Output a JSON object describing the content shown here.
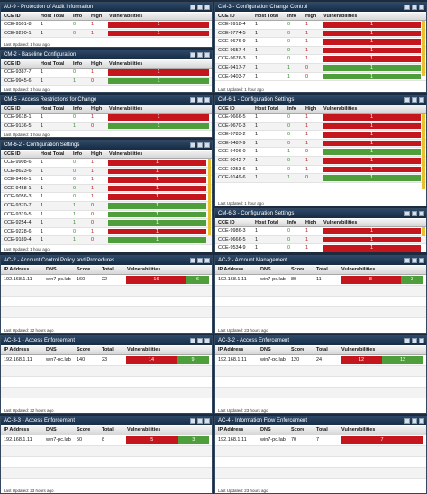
{
  "colors": [
    "#c4161c",
    "#4f9e3c"
  ],
  "panels": [
    {
      "title": "AU-9 - Protection of Audit Information",
      "columns": [
        "CCE ID",
        "Host Total",
        "Info",
        "High",
        "Vulnerabilities"
      ],
      "rows": [
        {
          "cells": [
            "CCE-9501-8",
            1,
            0,
            1
          ],
          "bar": [
            1,
            0
          ]
        },
        {
          "cells": [
            "CCE-9290-1",
            1,
            0,
            1
          ],
          "bar": [
            1,
            0
          ]
        }
      ],
      "footer": "Last Updated: 1 hour ago"
    },
    {
      "title": "CM-2 - Baseline Configuration",
      "columns": [
        "CCE ID",
        "Host Total",
        "Info",
        "High",
        "Vulnerabilities"
      ],
      "rows": [
        {
          "cells": [
            "CCE-9387-7",
            1,
            0,
            1
          ],
          "bar": [
            1,
            0
          ]
        },
        {
          "cells": [
            "CCE-9945-6",
            1,
            1,
            0
          ],
          "bar": [
            0,
            1
          ]
        }
      ],
      "footer": "Last Updated: 1 hour ago"
    },
    {
      "title": "CM-5 - Access Restrictions for Change",
      "columns": [
        "CCE ID",
        "Host Total",
        "Info",
        "High",
        "Vulnerabilities"
      ],
      "rows": [
        {
          "cells": [
            "CCE-9618-1",
            1,
            0,
            1
          ],
          "bar": [
            1,
            0
          ]
        },
        {
          "cells": [
            "CCE-9136-5",
            1,
            1,
            0
          ],
          "bar": [
            0,
            1
          ]
        }
      ],
      "footer": "Last Updated: 1 hour ago"
    },
    {
      "title": "CM-6-2 - Configuration Settings",
      "columns": [
        "CCE ID",
        "Host Total",
        "Info",
        "High",
        "Vulnerabilities"
      ],
      "rows": [
        {
          "cells": [
            "CCE-9908-6",
            1,
            0,
            1
          ],
          "bar": [
            1,
            0
          ]
        },
        {
          "cells": [
            "CCE-8623-6",
            1,
            0,
            1
          ],
          "bar": [
            1,
            0
          ]
        },
        {
          "cells": [
            "CCE-9496-1",
            1,
            0,
            1
          ],
          "bar": [
            1,
            0
          ]
        },
        {
          "cells": [
            "CCE-9458-1",
            1,
            0,
            1
          ],
          "bar": [
            1,
            0
          ]
        },
        {
          "cells": [
            "CCE-9056-3",
            1,
            0,
            1
          ],
          "bar": [
            1,
            0
          ]
        },
        {
          "cells": [
            "CCE-9370-7",
            1,
            1,
            0
          ],
          "bar": [
            0,
            1
          ]
        },
        {
          "cells": [
            "CCE-9319-5",
            1,
            1,
            0
          ],
          "bar": [
            0,
            1
          ]
        },
        {
          "cells": [
            "CCE-9254-4",
            1,
            1,
            0
          ],
          "bar": [
            0,
            1
          ]
        },
        {
          "cells": [
            "CCE-9228-6",
            1,
            0,
            1
          ],
          "bar": [
            1,
            0
          ]
        },
        {
          "cells": [
            "CCE-9189-4",
            1,
            1,
            0
          ],
          "bar": [
            0,
            1
          ]
        }
      ],
      "footer": "Last Updated: 1 hour ago"
    },
    {
      "title": "CM-3 - Configuration Change Control",
      "columns": [
        "CCE ID",
        "Host Total",
        "Info",
        "High",
        "Vulnerabilities"
      ],
      "rows": [
        {
          "cells": [
            "CCE-9918-4",
            1,
            0,
            1
          ],
          "bar": [
            1,
            0
          ]
        },
        {
          "cells": [
            "CCE-9774-5",
            1,
            0,
            1
          ],
          "bar": [
            1,
            0
          ]
        },
        {
          "cells": [
            "CCE-9676-9",
            1,
            0,
            1
          ],
          "bar": [
            1,
            0
          ]
        },
        {
          "cells": [
            "CCE-9657-4",
            1,
            0,
            1
          ],
          "bar": [
            1,
            0
          ]
        },
        {
          "cells": [
            "CCE-9676-3",
            1,
            0,
            1
          ],
          "bar": [
            1,
            0
          ]
        },
        {
          "cells": [
            "CCE-9417-7",
            1,
            1,
            0
          ],
          "bar": [
            0,
            1
          ]
        },
        {
          "cells": [
            "CCE-9403-7",
            1,
            1,
            0
          ],
          "bar": [
            0,
            1
          ]
        }
      ],
      "footer": "Last Updated: 1 hour ago"
    },
    {
      "title": "CM-6-1 - Configuration Settings",
      "columns": [
        "CCE ID",
        "Host Total",
        "Info",
        "High",
        "Vulnerabilities"
      ],
      "rows": [
        {
          "cells": [
            "CCE-9666-5",
            1,
            0,
            1
          ],
          "bar": [
            1,
            0
          ]
        },
        {
          "cells": [
            "CCE-9670-3",
            1,
            0,
            1
          ],
          "bar": [
            1,
            0
          ]
        },
        {
          "cells": [
            "CCE-9783-2",
            1,
            0,
            1
          ],
          "bar": [
            1,
            0
          ]
        },
        {
          "cells": [
            "CCE-9487-9",
            1,
            0,
            1
          ],
          "bar": [
            1,
            0
          ]
        },
        {
          "cells": [
            "CCE-9406-0",
            1,
            1,
            0
          ],
          "bar": [
            0,
            1
          ]
        },
        {
          "cells": [
            "CCE-9042-7",
            1,
            0,
            1
          ],
          "bar": [
            1,
            0
          ]
        },
        {
          "cells": [
            "CCE-9253-6",
            1,
            0,
            1
          ],
          "bar": [
            1,
            0
          ]
        },
        {
          "cells": [
            "CCE-9149-6",
            1,
            1,
            0
          ],
          "bar": [
            0,
            1
          ]
        }
      ],
      "footer": "Last Updated: 1 hour ago"
    },
    {
      "title": "CM-6-3 - Configuration Settings",
      "columns": [
        "CCE ID",
        "Host Total",
        "Info",
        "High",
        "Vulnerabilities"
      ],
      "rows": [
        {
          "cells": [
            "CCE-9986-3",
            1,
            0,
            1
          ],
          "bar": [
            1,
            0
          ]
        },
        {
          "cells": [
            "CCE-9666-5",
            1,
            0,
            1
          ],
          "bar": [
            1,
            0
          ]
        },
        {
          "cells": [
            "CCE-9534-9",
            1,
            0,
            1
          ],
          "bar": [
            1,
            0
          ]
        }
      ]
    },
    {
      "title": "AC-2 - Account Control Policy and Procedures",
      "columns": [
        "IP Address",
        "DNS",
        "Score",
        "Total",
        "Vulnerabilities"
      ],
      "rows": [
        {
          "cells": [
            "192.168.1.11",
            "win7-pc.lab",
            160,
            22
          ],
          "bar": [
            16,
            6
          ]
        }
      ],
      "footer": "Last Updated: 22 hours ago"
    },
    {
      "title": "AC-2 - Account Management",
      "columns": [
        "IP Address",
        "DNS",
        "Score",
        "Total",
        "Vulnerabilities"
      ],
      "rows": [
        {
          "cells": [
            "192.168.1.11",
            "win7-pc.lab",
            80,
            11
          ],
          "bar": [
            8,
            3
          ]
        }
      ],
      "footer": "Last Updated: 23 hours ago"
    },
    {
      "title": "AC-3-1 - Access Enforcement",
      "columns": [
        "IP Address",
        "DNS",
        "Score",
        "Total",
        "Vulnerabilities"
      ],
      "rows": [
        {
          "cells": [
            "192.168.1.11",
            "win7-pc.lab",
            140,
            23
          ],
          "bar": [
            14,
            9
          ]
        }
      ],
      "footer": "Last Updated: 22 hours ago"
    },
    {
      "title": "AC-3-2 - Access Enforcement",
      "columns": [
        "IP Address",
        "DNS",
        "Score",
        "Total",
        "Vulnerabilities"
      ],
      "rows": [
        {
          "cells": [
            "192.168.1.11",
            "win7-pc.lab",
            120,
            24
          ],
          "bar": [
            12,
            12
          ]
        }
      ],
      "footer": "Last Updated: 23 hours ago"
    },
    {
      "title": "AC-3-3 - Access Enforcement",
      "columns": [
        "IP Address",
        "DNS",
        "Score",
        "Total",
        "Vulnerabilities"
      ],
      "rows": [
        {
          "cells": [
            "192.168.1.11",
            "win7-pc.lab",
            50,
            8
          ],
          "bar": [
            5,
            3
          ]
        }
      ],
      "footer": "Last Updated: 23 hours ago"
    },
    {
      "title": "AC-4 - Information Flow Enforcement",
      "columns": [
        "IP Address",
        "DNS",
        "Score",
        "Total",
        "Vulnerabilities"
      ],
      "rows": [
        {
          "cells": [
            "192.168.1.11",
            "win7-pc.lab",
            70,
            7
          ],
          "bar": [
            7
          ]
        }
      ],
      "footer": "Last Updated: 23 hours ago"
    }
  ]
}
